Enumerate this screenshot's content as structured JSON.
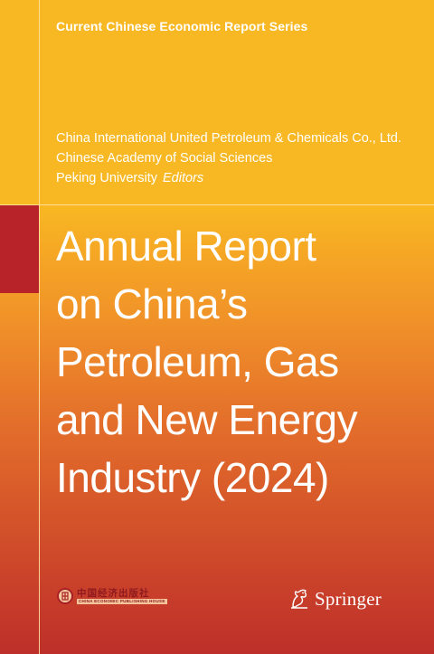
{
  "series": "Current Chinese Economic Report Series",
  "editors": [
    "China International United Petroleum & Chemicals Co., Ltd.",
    "Chinese Academy of Social Sciences",
    "Peking University"
  ],
  "editors_role": "Editors",
  "title_lines": [
    "Annual Report",
    "on China’s",
    "Petroleum, Gas",
    "and New Energy",
    "Industry (2024)"
  ],
  "publisher_logo": {
    "chinese": "中国经济出版社",
    "english": "CHINA ECONOMIC PUBLISHING HOUSE",
    "icon": "publisher-emblem-icon"
  },
  "springer": {
    "name": "Springer",
    "icon": "springer-horse-icon"
  },
  "colors": {
    "top_band": "#f8b823",
    "gradient_bottom": "#bd2f2a",
    "red_block": "#b8232a",
    "text": "#ffffff"
  }
}
